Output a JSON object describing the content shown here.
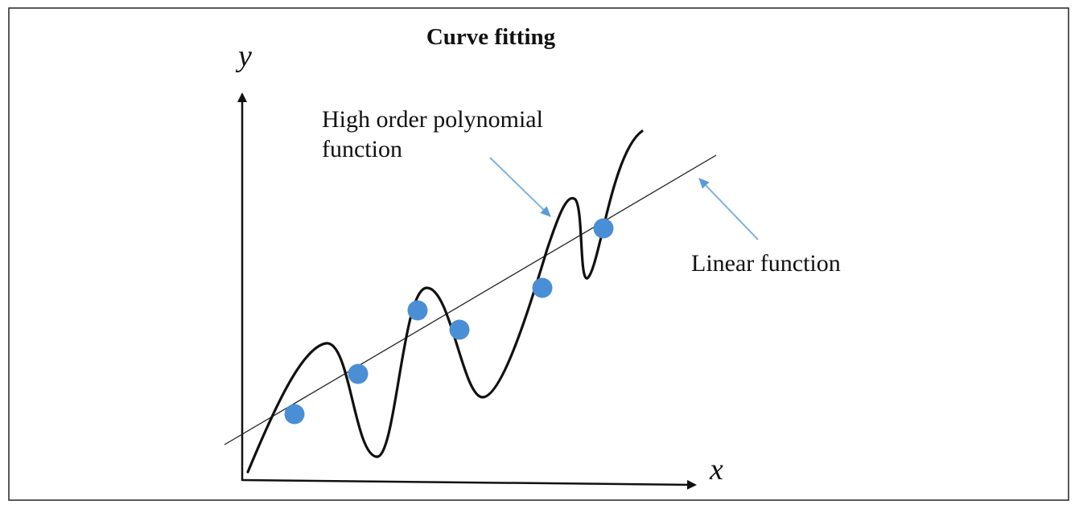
{
  "title": "Curve fitting",
  "axes": {
    "x_label": "x",
    "y_label": "y"
  },
  "annotations": {
    "poly_line1": "High order polynomial",
    "poly_line2": "function",
    "linear": "Linear function"
  },
  "colors": {
    "frame": "#222222",
    "axis": "#111111",
    "curve": "#111111",
    "line": "#222222",
    "points": "#4a8fd6",
    "arrows": "#7fb2dd"
  },
  "data_points_count": 6
}
